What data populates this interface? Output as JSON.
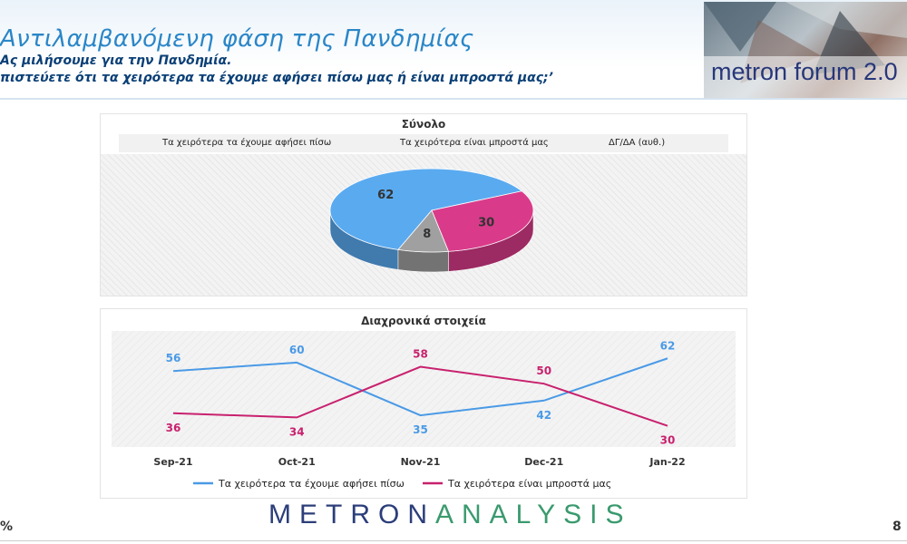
{
  "header": {
    "title": "Αντιλαμβανόμενη φάση της Πανδημίας",
    "subtitle": "Ας μιλήσουμε για την Πανδημία.",
    "question": "πιστεύετε ότι τα χειρότερα τα έχουμε αφήσει πίσω μας ή είναι μπροστά μας;’",
    "logo_text": "metron forum 2.0"
  },
  "footer": {
    "brand_part1": "METRON",
    "brand_part2": "ANALYSIS",
    "percent_symbol": "%",
    "page_number": "8"
  },
  "colors": {
    "blue": "#5aaaf0",
    "pink": "#d93b8a",
    "gray": "#a0a0a0",
    "line_blue": "#4a9ae6",
    "line_pink": "#c8216e"
  },
  "chart_data": [
    {
      "type": "pie",
      "title": "Σύνολο",
      "legend_position": "top",
      "slices": [
        {
          "label": "Τα χειρότερα τα έχουμε αφήσει πίσω",
          "value": 62,
          "color": "#5aaaf0"
        },
        {
          "label": "Τα χειρότερα είναι μπροστά μας",
          "value": 30,
          "color": "#d93b8a"
        },
        {
          "label": "ΔΓ/ΔΑ (αυθ.)",
          "value": 8,
          "color": "#a0a0a0"
        }
      ]
    },
    {
      "type": "line",
      "title": "Διαχρονικά στοιχεία",
      "legend_position": "bottom",
      "categories": [
        "Sep-21",
        "Oct-21",
        "Nov-21",
        "Dec-21",
        "Jan-22"
      ],
      "ylim": [
        20,
        75
      ],
      "grid": true,
      "series": [
        {
          "name": "Τα χειρότερα τα έχουμε αφήσει πίσω",
          "values": [
            56,
            60,
            35,
            42,
            62
          ],
          "color": "#4a9ae6"
        },
        {
          "name": "Τα χειρότερα είναι μπροστά μας",
          "values": [
            36,
            34,
            58,
            50,
            30
          ],
          "color": "#c8216e"
        }
      ]
    }
  ]
}
